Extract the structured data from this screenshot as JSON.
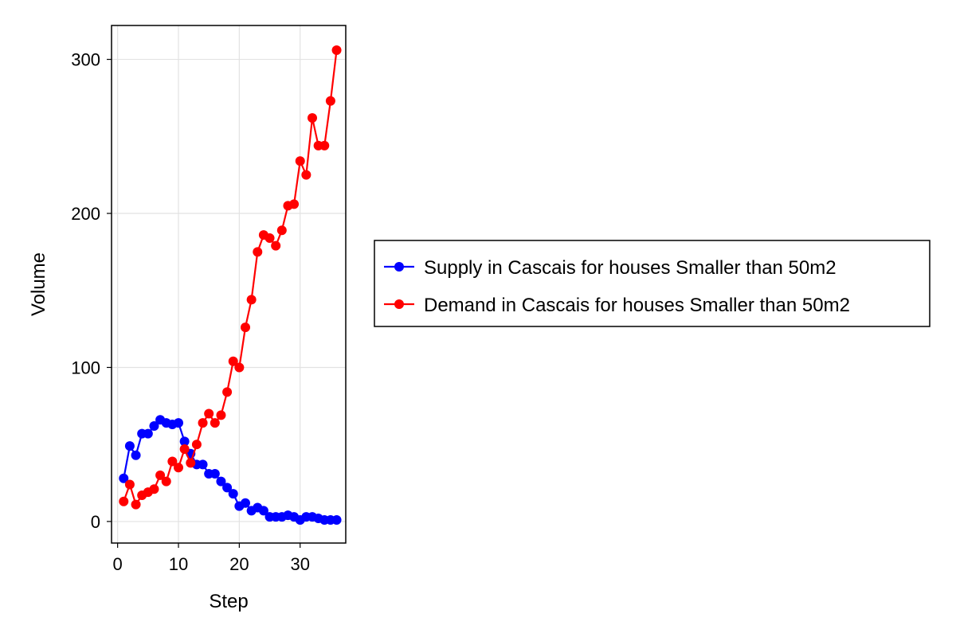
{
  "chart_data": {
    "type": "line",
    "xlabel": "Step",
    "ylabel": "Volume",
    "xlim": [
      -1,
      37.5
    ],
    "ylim": [
      -14,
      322
    ],
    "xticks": [
      0,
      10,
      20,
      30
    ],
    "yticks": [
      0,
      100,
      200,
      300
    ],
    "x_tick_labels": [
      "0",
      "10",
      "20",
      "30"
    ],
    "y_tick_labels": [
      "0",
      "100",
      "200",
      "300"
    ],
    "grid": true,
    "legend_position": "right",
    "x": [
      1,
      2,
      3,
      4,
      5,
      6,
      7,
      8,
      9,
      10,
      11,
      12,
      13,
      14,
      15,
      16,
      17,
      18,
      19,
      20,
      21,
      22,
      23,
      24,
      25,
      26,
      27,
      28,
      29,
      30,
      31,
      32,
      33,
      34,
      35,
      36
    ],
    "series": [
      {
        "name": "Supply in Cascais for houses Smaller than 50m2",
        "color": "#0000ff",
        "values": [
          28,
          49,
          43,
          57,
          57,
          62,
          66,
          64,
          63,
          64,
          52,
          44,
          37,
          37,
          31,
          31,
          26,
          22,
          18,
          10,
          12,
          7,
          9,
          7,
          3,
          3,
          3,
          4,
          3,
          1,
          3,
          3,
          2,
          1,
          1,
          1
        ]
      },
      {
        "name": "Demand in Cascais for houses Smaller than 50m2",
        "color": "#ff0000",
        "values": [
          13,
          24,
          11,
          17,
          19,
          21,
          30,
          26,
          39,
          35,
          47,
          38,
          50,
          64,
          70,
          64,
          69,
          84,
          104,
          100,
          126,
          144,
          175,
          186,
          184,
          179,
          189,
          205,
          206,
          234,
          225,
          262,
          244,
          244,
          273,
          306
        ]
      }
    ]
  }
}
